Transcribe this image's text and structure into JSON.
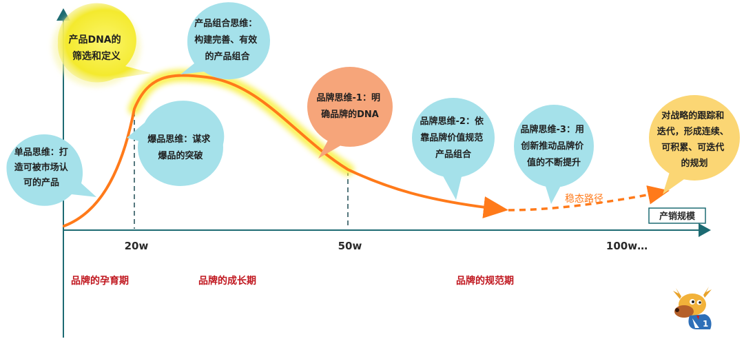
{
  "colors": {
    "axis": "#1c6a72",
    "curve": "#ff7a1a",
    "glow": "#f8ef3c",
    "bubble_blue": "#a5e1ea",
    "bubble_salmon": "#f6a57a",
    "bubble_yellow": "#f7e84c",
    "bubble_gold": "#fbd674",
    "stage": "#c0171f"
  },
  "bubbles": [
    {
      "id": "single",
      "lines": [
        "单品思维：打",
        "造可被市场认",
        "可的产品"
      ]
    },
    {
      "id": "dna",
      "lines": [
        "产品DNA的",
        "筛选和定义"
      ]
    },
    {
      "id": "combo",
      "lines": [
        "产品组合思维：",
        "构建完善、有效",
        "的产品组合"
      ]
    },
    {
      "id": "hit",
      "lines": [
        "爆品思维：谋求",
        "爆品的突破"
      ]
    },
    {
      "id": "brand1",
      "lines": [
        "品牌思维-1：明",
        "确品牌的DNA"
      ]
    },
    {
      "id": "brand2",
      "lines": [
        "品牌思维-2：依",
        "靠品牌价值规范",
        "产品组合"
      ]
    },
    {
      "id": "brand3",
      "lines": [
        "品牌思维-3：用",
        "创新推动品牌价",
        "值的不断提升"
      ]
    },
    {
      "id": "strategy",
      "lines": [
        "对战略的跟踪和",
        "迭代，形成连续、",
        "可积累、可迭代",
        "的规划"
      ]
    }
  ],
  "axis": {
    "x_label": "产销规模",
    "ticks": [
      "20w",
      "50w",
      "100w…"
    ]
  },
  "path_label": "稳态路径",
  "stages": [
    "品牌的孕育期",
    "品牌的成长期",
    "品牌的规范期"
  ],
  "mascot": {
    "icon": "moose-mascot-icon",
    "badge": "1"
  }
}
